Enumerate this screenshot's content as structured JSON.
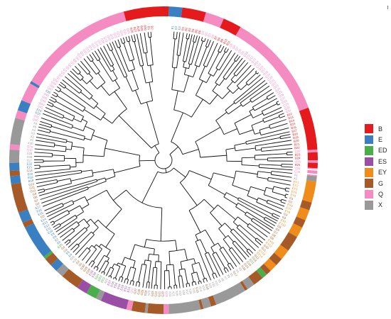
{
  "colors": {
    "B": "#e41a1c",
    "E": "#3a7fc1",
    "ED": "#4aae4a",
    "ES": "#9a4fa6",
    "EY": "#f08c1a",
    "G": "#a65a28",
    "Q": "#f48cc2",
    "X": "#999999"
  },
  "legend": {
    "items": [
      {
        "label": "B",
        "color_key": "B"
      },
      {
        "label": "E",
        "color_key": "E"
      },
      {
        "label": "ED",
        "color_key": "ED"
      },
      {
        "label": "ES",
        "color_key": "ES"
      },
      {
        "label": "EY",
        "color_key": "EY"
      },
      {
        "label": "G",
        "color_key": "G"
      },
      {
        "label": "Q",
        "color_key": "Q"
      },
      {
        "label": "X",
        "color_key": "X"
      }
    ]
  },
  "ring_segments": [
    {
      "group": "B",
      "start": 345,
      "end": 2
    },
    {
      "group": "E",
      "start": 2,
      "end": 7
    },
    {
      "group": "B",
      "start": 7,
      "end": 16
    },
    {
      "group": "Q",
      "start": 16,
      "end": 23
    },
    {
      "group": "B",
      "start": 23,
      "end": 30
    },
    {
      "group": "Q",
      "start": 30,
      "end": 70
    },
    {
      "group": "B",
      "start": 70,
      "end": 86
    },
    {
      "group": "Q",
      "start": 86,
      "end": 87
    },
    {
      "group": "B",
      "start": 87,
      "end": 90
    },
    {
      "group": "Q",
      "start": 90,
      "end": 91
    },
    {
      "group": "B",
      "start": 91,
      "end": 93
    },
    {
      "group": "Q",
      "start": 93,
      "end": 96
    },
    {
      "group": "X",
      "start": 96,
      "end": 98
    },
    {
      "group": "EY",
      "start": 98,
      "end": 106
    },
    {
      "group": "G",
      "start": 106,
      "end": 109
    },
    {
      "group": "EY",
      "start": 109,
      "end": 113
    },
    {
      "group": "G",
      "start": 113,
      "end": 116
    },
    {
      "group": "EY",
      "start": 116,
      "end": 120
    },
    {
      "group": "G",
      "start": 120,
      "end": 126
    },
    {
      "group": "EY",
      "start": 126,
      "end": 130
    },
    {
      "group": "G",
      "start": 130,
      "end": 133
    },
    {
      "group": "EY",
      "start": 133,
      "end": 136
    },
    {
      "group": "G",
      "start": 136,
      "end": 138
    },
    {
      "group": "ED",
      "start": 138,
      "end": 140
    },
    {
      "group": "G",
      "start": 140,
      "end": 144
    },
    {
      "group": "X",
      "start": 144,
      "end": 147
    },
    {
      "group": "G",
      "start": 147,
      "end": 148
    },
    {
      "group": "X",
      "start": 148,
      "end": 160
    },
    {
      "group": "G",
      "start": 160,
      "end": 162
    },
    {
      "group": "X",
      "start": 162,
      "end": 165
    },
    {
      "group": "G",
      "start": 165,
      "end": 166
    },
    {
      "group": "X",
      "start": 166,
      "end": 178
    },
    {
      "group": "Q",
      "start": 178,
      "end": 180
    },
    {
      "group": "G",
      "start": 180,
      "end": 186
    },
    {
      "group": "X",
      "start": 186,
      "end": 187
    },
    {
      "group": "G",
      "start": 187,
      "end": 192
    },
    {
      "group": "Q",
      "start": 192,
      "end": 194
    },
    {
      "group": "ES",
      "start": 194,
      "end": 204
    },
    {
      "group": "X",
      "start": 204,
      "end": 206
    },
    {
      "group": "ED",
      "start": 206,
      "end": 210
    },
    {
      "group": "ES",
      "start": 210,
      "end": 214
    },
    {
      "group": "G",
      "start": 214,
      "end": 221
    },
    {
      "group": "X",
      "start": 221,
      "end": 224
    },
    {
      "group": "E",
      "start": 224,
      "end": 227
    },
    {
      "group": "G",
      "start": 227,
      "end": 230
    },
    {
      "group": "ED",
      "start": 230,
      "end": 231
    },
    {
      "group": "E",
      "start": 231,
      "end": 244
    },
    {
      "group": "G",
      "start": 244,
      "end": 246
    },
    {
      "group": "E",
      "start": 246,
      "end": 250
    },
    {
      "group": "G",
      "start": 250,
      "end": 261
    },
    {
      "group": "E",
      "start": 261,
      "end": 264
    },
    {
      "group": "G",
      "start": 264,
      "end": 266
    },
    {
      "group": "E",
      "start": 266,
      "end": 269
    },
    {
      "group": "X",
      "start": 269,
      "end": 274
    },
    {
      "group": "Q",
      "start": 274,
      "end": 276
    },
    {
      "group": "X",
      "start": 276,
      "end": 286
    },
    {
      "group": "Q",
      "start": 286,
      "end": 289
    },
    {
      "group": "E",
      "start": 289,
      "end": 293
    },
    {
      "group": "Q",
      "start": 293,
      "end": 300
    },
    {
      "group": "E",
      "start": 300,
      "end": 301
    },
    {
      "group": "Q",
      "start": 301,
      "end": 345
    }
  ],
  "tip_labels": [
    "B1",
    "B2",
    "B3",
    "B4",
    "B5",
    "B6",
    "B7",
    "B8",
    "B9",
    "B10",
    "B11",
    "B12",
    "B13",
    "B14",
    "B15",
    "B16",
    "B17",
    "B18",
    "B19",
    "B20",
    "B21",
    "B22",
    "B23",
    "B24",
    "B25",
    "B26",
    "B27",
    "B28",
    "B29",
    "B30",
    "E1",
    "E2",
    "E3",
    "E4",
    "E5",
    "E6",
    "E7",
    "E8",
    "E9",
    "E10",
    "E11",
    "E12",
    "E13",
    "E14",
    "E15",
    "E16",
    "E17",
    "E18",
    "E19",
    "E20",
    "E21",
    "E22",
    "E23",
    "E24",
    "E25",
    "E26",
    "E27",
    "E28",
    "E29",
    "E30",
    "E31",
    "E32",
    "E33",
    "E34",
    "E35",
    "E36",
    "E37",
    "E38",
    "E39",
    "E40",
    "ED1",
    "ED2",
    "ED3",
    "ED4",
    "ED5",
    "ED6",
    "ED7",
    "ED8",
    "ES1",
    "ES2",
    "ES3",
    "ES4",
    "ES5",
    "ES6",
    "ES7",
    "ES8",
    "ES9",
    "ES10",
    "EY1",
    "EY2",
    "EY3",
    "EY4",
    "EY5",
    "EY6",
    "EY7",
    "EY8",
    "EY9",
    "EY10",
    "EY11",
    "EY12",
    "EY13",
    "EY14",
    "EY15",
    "EY16",
    "EY17",
    "EY18",
    "EY19",
    "EY20",
    "G1",
    "G2",
    "G3",
    "G4",
    "G5",
    "G6",
    "G7",
    "G8",
    "G9",
    "G10",
    "G11",
    "G12",
    "G13",
    "G14",
    "G15",
    "G16",
    "G17",
    "G18",
    "G19",
    "G20",
    "G21",
    "G22",
    "G23",
    "G24",
    "G25",
    "G26",
    "G27",
    "G28",
    "G29",
    "G30",
    "Q1",
    "Q2",
    "Q3",
    "Q4",
    "Q5",
    "Q6",
    "Q7",
    "Q8",
    "Q9",
    "Q10",
    "Q11",
    "Q12",
    "Q13",
    "Q14",
    "Q15",
    "Q16",
    "Q17",
    "Q18",
    "Q19",
    "Q20",
    "Q21",
    "Q22",
    "Q23",
    "Q24",
    "Q25",
    "Q26",
    "Q27",
    "Q28",
    "Q29",
    "Q30",
    "Q31",
    "Q32",
    "Q33",
    "Q34",
    "Q35",
    "Q36",
    "Q37",
    "Q38",
    "Q39",
    "Q40",
    "Q41",
    "Q42",
    "Q43",
    "Q44",
    "Q45",
    "Q46",
    "Q47",
    "Q48",
    "Q49",
    "Q50",
    "X1",
    "X2",
    "X3",
    "X4",
    "X5",
    "X6",
    "X7",
    "X8",
    "X9",
    "X10",
    "X11",
    "X12",
    "X13",
    "X14",
    "X15",
    "X16",
    "X17",
    "X18",
    "X19",
    "X20",
    "X21",
    "X22",
    "X23",
    "X24",
    "X25",
    "X26",
    "X27",
    "X28",
    "X29",
    "X30"
  ]
}
